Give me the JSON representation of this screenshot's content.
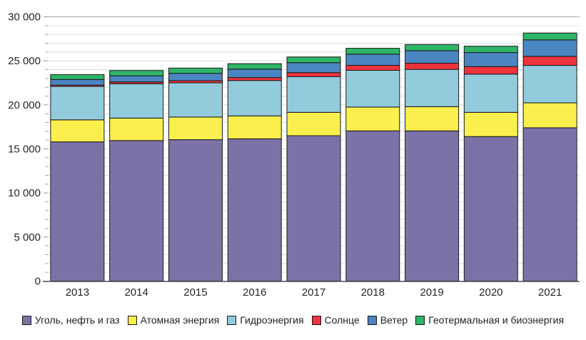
{
  "chart_data": {
    "type": "bar",
    "stacked": true,
    "title": "",
    "xlabel": "",
    "ylabel": "",
    "categories": [
      "2013",
      "2014",
      "2015",
      "2016",
      "2017",
      "2018",
      "2019",
      "2020",
      "2021"
    ],
    "series": [
      {
        "name": "Уголь, нефть и газ",
        "color": "#7C72A8",
        "values": [
          15800,
          15950,
          16050,
          16150,
          16500,
          17050,
          17050,
          16400,
          17400
        ]
      },
      {
        "name": "Атомная энергия",
        "color": "#FBEF4D",
        "values": [
          2500,
          2550,
          2570,
          2600,
          2650,
          2700,
          2750,
          2750,
          2830
        ]
      },
      {
        "name": "Гидроэнергия",
        "color": "#92CBDC",
        "values": [
          3800,
          3900,
          3880,
          4020,
          4060,
          4170,
          4230,
          4340,
          4250
        ]
      },
      {
        "name": "Солнце",
        "color": "#EE333D",
        "values": [
          140,
          200,
          250,
          330,
          450,
          570,
          700,
          860,
          1030
        ]
      },
      {
        "name": "Ветер",
        "color": "#4A86C1",
        "values": [
          650,
          700,
          830,
          960,
          1130,
          1270,
          1420,
          1590,
          1870
        ]
      },
      {
        "name": "Геотермальная и биоэнергия",
        "color": "#2EB567",
        "values": [
          550,
          600,
          600,
          620,
          650,
          670,
          700,
          720,
          780
        ]
      }
    ],
    "totals": [
      23440,
      23900,
      24180,
      24680,
      25440,
      26430,
      26850,
      26660,
      28160
    ],
    "ylim": [
      0,
      30000
    ],
    "ytick_step": 5000,
    "minor_grid_step": 1000,
    "ytick_labels": [
      "0",
      "5 000",
      "10 000",
      "15 000",
      "20 000",
      "25 000",
      "30 000"
    ],
    "grid": true,
    "legend_position": "bottom",
    "colors": {
      "grid_minor": "#DBDBDB",
      "grid_top": "#A8A8A8",
      "axis_line": "#4D4D4D",
      "tick": "#999999",
      "bar_border": "#1A1A1A",
      "text": "#262626",
      "background": "#FFFFFF"
    }
  }
}
